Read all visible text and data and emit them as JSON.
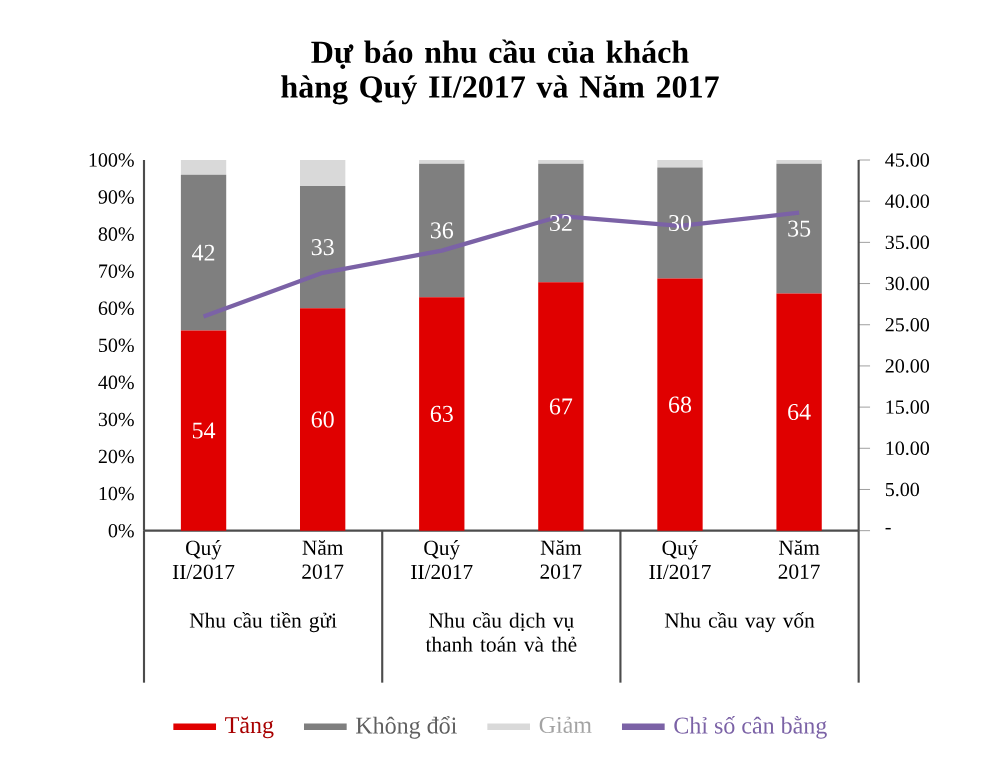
{
  "chart_data": {
    "type": "bar",
    "stacked": true,
    "title": "Dự báo nhu cầu của khách hàng Quý II/2017 và Năm 2017",
    "categories": [
      "Quý II/2017",
      "Năm 2017",
      "Quý II/2017",
      "Năm 2017",
      "Quý II/2017",
      "Năm 2017"
    ],
    "series": [
      {
        "name": "Tăng",
        "color": "#e00000",
        "values": [
          54,
          60,
          63,
          67,
          68,
          64
        ],
        "value_labels": [
          "54",
          "60",
          "63",
          "67",
          "68",
          "64"
        ]
      },
      {
        "name": "Không đổi",
        "color": "#7f7f7f",
        "values": [
          42,
          33,
          36,
          32,
          30,
          35
        ],
        "value_labels": [
          "42",
          "33",
          "36",
          "32",
          "30",
          "35"
        ]
      },
      {
        "name": "Giảm",
        "color": "#d9d9d9",
        "values": [
          4,
          7,
          1,
          1,
          2,
          1
        ]
      },
      {
        "name": "Chỉ số cân bằng",
        "type": "line",
        "axis": "y2",
        "color": "#7b62a6",
        "marker": "none",
        "values": [
          26.0,
          31.3,
          34.0,
          38.2,
          37.0,
          38.6
        ]
      }
    ],
    "ylim": [
      0,
      100
    ],
    "yticks": [
      {
        "value": 0,
        "label": "0%"
      },
      {
        "value": 10,
        "label": "10%"
      },
      {
        "value": 20,
        "label": "20%"
      },
      {
        "value": 30,
        "label": "30%"
      },
      {
        "value": 40,
        "label": "40%"
      },
      {
        "value": 50,
        "label": "50%"
      },
      {
        "value": 60,
        "label": "60%"
      },
      {
        "value": 70,
        "label": "70%"
      },
      {
        "value": 80,
        "label": "80%"
      },
      {
        "value": 90,
        "label": "90%"
      },
      {
        "value": 100,
        "label": "100%"
      }
    ],
    "y2lim": [
      0,
      45
    ],
    "y2ticks": [
      {
        "value": 0,
        "label": "-"
      },
      {
        "value": 5,
        "label": "5.00"
      },
      {
        "value": 10,
        "label": "10.00"
      },
      {
        "value": 15,
        "label": "15.00"
      },
      {
        "value": 20,
        "label": "20.00"
      },
      {
        "value": 25,
        "label": "25.00"
      },
      {
        "value": 30,
        "label": "30.00"
      },
      {
        "value": 35,
        "label": "35.00"
      },
      {
        "value": 40,
        "label": "40.00"
      },
      {
        "value": 45,
        "label": "45.00"
      }
    ],
    "annotations": [
      "Nhu cầu tiền gửi",
      "Nhu cầu dịch vụ thanh toán và thẻ",
      "Nhu cầu vay vốn"
    ],
    "grid": false,
    "legend": "bottom"
  }
}
